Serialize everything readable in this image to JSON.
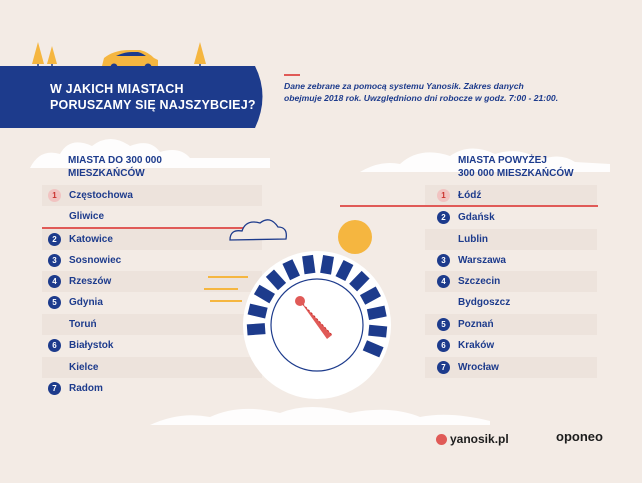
{
  "title": {
    "line1": "W JAKICH MIASTACH",
    "line2": "PORUSZAMY SIĘ NAJSZYBCIEJ?"
  },
  "note": {
    "line1": "Dane zebrane za pomocą systemu Yanosik. Zakres danych",
    "line2": "obejmuje 2018 rok. Uwzględniono dni robocze w godz. 7:00 - 21:00."
  },
  "left_column": {
    "heading_line1": "MIASTA DO 300 000",
    "heading_line2": "MIESZKAŃCÓW",
    "rows": [
      {
        "rank": "1",
        "city": "Częstochowa"
      },
      {
        "rank": "",
        "city": "Gliwice"
      },
      {
        "rank": "2",
        "city": "Katowice"
      },
      {
        "rank": "3",
        "city": "Sosnowiec"
      },
      {
        "rank": "4",
        "city": "Rzeszów"
      },
      {
        "rank": "5",
        "city": "Gdynia"
      },
      {
        "rank": "",
        "city": "Toruń"
      },
      {
        "rank": "6",
        "city": "Białystok"
      },
      {
        "rank": "",
        "city": "Kielce"
      },
      {
        "rank": "7",
        "city": "Radom"
      }
    ]
  },
  "right_column": {
    "heading_line1": "MIASTA POWYŻEJ",
    "heading_line2": "300 000 MIESZKAŃCÓW",
    "rows": [
      {
        "rank": "1",
        "city": "Łódź"
      },
      {
        "rank": "2",
        "city": "Gdańsk"
      },
      {
        "rank": "",
        "city": "Lublin"
      },
      {
        "rank": "3",
        "city": "Warszawa"
      },
      {
        "rank": "4",
        "city": "Szczecin"
      },
      {
        "rank": "",
        "city": "Bydgoszcz"
      },
      {
        "rank": "5",
        "city": "Poznań"
      },
      {
        "rank": "6",
        "city": "Kraków"
      },
      {
        "rank": "7",
        "city": "Wrocław"
      }
    ]
  },
  "logos": {
    "yanosik": "yanosik.pl",
    "oponeo": "oponeo"
  },
  "colors": {
    "navy": "#1d3b8c",
    "red": "#e05a57",
    "background": "#f3ebe5",
    "yellow": "#f5b640"
  }
}
